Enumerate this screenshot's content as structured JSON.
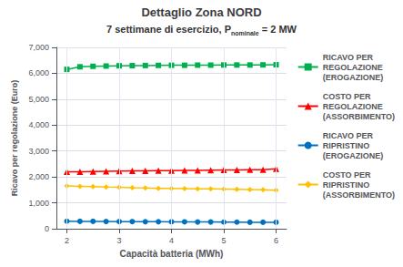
{
  "chart_data": {
    "type": "line",
    "title": "Dettaglio Zona NORD",
    "subtitle": "7 settimane di esercizio, P",
    "subtitle_subscript": "nominale",
    "subtitle_suffix": " = 2 MW",
    "xlabel": "Capacità batteria (MWh)",
    "ylabel": "Ricavo per regolazione (Euro)",
    "x": [
      2.0,
      2.25,
      2.5,
      2.75,
      3.0,
      3.25,
      3.5,
      3.75,
      4.0,
      4.25,
      4.5,
      4.75,
      5.0,
      5.25,
      5.5,
      5.75,
      6.0
    ],
    "series": [
      {
        "name": "RICAVO PER\nREGOLAZIONE\n(EROGAZIONE)",
        "color": "#00b050",
        "marker": "square",
        "values": [
          6150,
          6250,
          6270,
          6280,
          6290,
          6295,
          6300,
          6305,
          6310,
          6310,
          6315,
          6315,
          6320,
          6320,
          6320,
          6325,
          6330
        ]
      },
      {
        "name": "COSTO PER\nREGOLAZIONE\n(ASSORBIMENTO)",
        "color": "#ff0000",
        "marker": "triangle",
        "values": [
          2200,
          2200,
          2210,
          2220,
          2225,
          2230,
          2235,
          2240,
          2245,
          2250,
          2255,
          2260,
          2265,
          2270,
          2275,
          2280,
          2310
        ]
      },
      {
        "name": "RICAVO PER\nRIPRISTINO\n(EROGAZIONE)",
        "color": "#0070c0",
        "marker": "circle",
        "values": [
          290,
          285,
          285,
          280,
          275,
          275,
          270,
          270,
          265,
          265,
          260,
          260,
          255,
          255,
          250,
          250,
          250
        ]
      },
      {
        "name": "COSTO PER\nRIPRISTINO\n(ASSORBIMENTO)",
        "color": "#ffc000",
        "marker": "diamond",
        "values": [
          1650,
          1640,
          1630,
          1610,
          1600,
          1580,
          1570,
          1560,
          1560,
          1550,
          1540,
          1540,
          1530,
          1520,
          1510,
          1500,
          1490
        ]
      }
    ],
    "xlim": [
      1.8,
      6.2
    ],
    "xticks": [
      2,
      3,
      4,
      5,
      6
    ],
    "ylim": [
      0,
      7000
    ],
    "yticks": [
      0,
      1000,
      2000,
      3000,
      4000,
      5000,
      6000,
      7000
    ],
    "grid": true,
    "legend": "right"
  }
}
